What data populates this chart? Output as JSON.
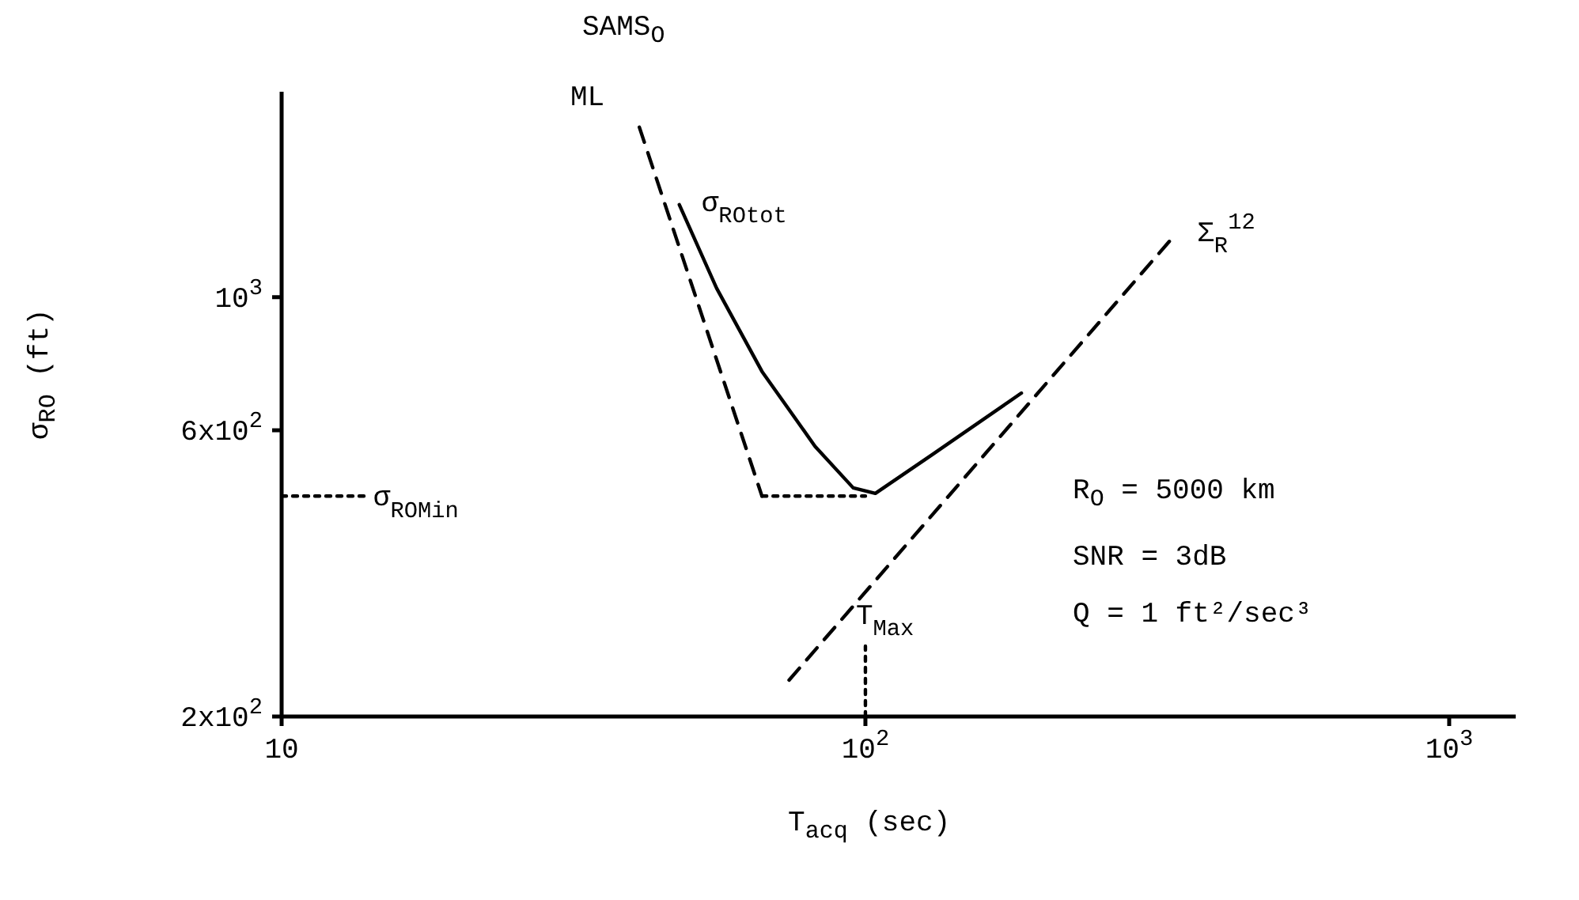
{
  "chart_data": {
    "type": "line",
    "title": "SAMS$_{O}$",
    "xlabel": "T$_{acq}$ (sec)",
    "ylabel": "σ$_{RO}$ (ft)",
    "log": "xy",
    "marker": "none",
    "xlim": [
      10,
      1300
    ],
    "ylim": [
      200,
      2200
    ],
    "xticks": [
      10,
      {
        "value": 100,
        "label": "10$^{2}$"
      },
      {
        "value": 1000,
        "label": "10$^{3}$"
      }
    ],
    "yticks": [
      {
        "value": 200,
        "label": "2x10$^{2}$"
      },
      {
        "value": 600,
        "label": "6x10$^{2}$"
      },
      {
        "value": 1000,
        "label": "10$^{3}$"
      }
    ],
    "series": [
      {
        "name": "ML",
        "color": "#000000",
        "line_style": "dashed",
        "x": [
          41,
          66.5
        ],
        "values": [
          1920,
          466
        ]
      },
      {
        "name": "σ$_{R}$$_{O}$$_{tot}$",
        "color": "#000000",
        "line_style": "solid",
        "x": [
          48,
          55.6,
          66.5,
          82,
          95.3,
          104,
          130,
          185
        ],
        "values": [
          1426,
          1035,
          752,
          564,
          481,
          471,
          546,
          692
        ]
      },
      {
        "name": "Σ$_{R}$$^{12}$",
        "color": "#000000",
        "line_style": "dashed",
        "x": [
          74,
          339
        ],
        "values": [
          230,
          1270
        ]
      },
      {
        "color": "#000000",
        "line_style": "dotted",
        "x": [
          66.5,
          100
        ],
        "values": [
          466,
          466
        ]
      },
      {
        "color": "#000000",
        "line_style": "dotted",
        "x": [
          10,
          14
        ],
        "values": [
          466,
          466
        ]
      },
      {
        "color": "#000000",
        "line_style": "dotted",
        "x": [
          100,
          100
        ],
        "values": [
          200,
          262
        ]
      }
    ],
    "annotations": [
      {
        "text": "σ$_{R}$$_{O}$$_{Min}$",
        "x": 14,
        "y": 466
      },
      {
        "text": "T$_{Max}$",
        "x": 100,
        "y": 262
      },
      "R$_{O}$ = 5000 km",
      "SNR = 3dB",
      "Q = 1 ft²/sec³"
    ]
  }
}
